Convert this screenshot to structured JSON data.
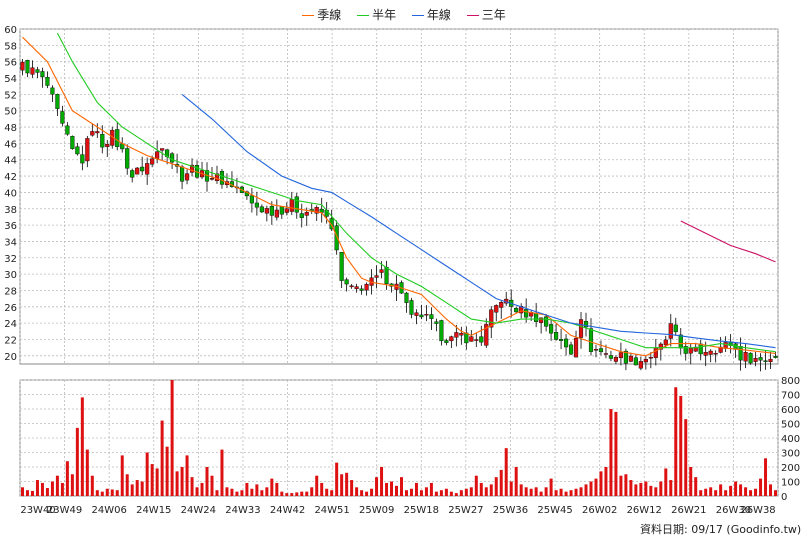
{
  "legend": [
    {
      "label": "季線",
      "color": "#ff6600"
    },
    {
      "label": "半年",
      "color": "#22cc22"
    },
    {
      "label": "年線",
      "color": "#2266dd"
    },
    {
      "label": "三年",
      "color": "#cc1166"
    }
  ],
  "credit": "資料日期: 09/17 (Goodinfo.tw)",
  "colors": {
    "up": "#dd1111",
    "down": "#00aa00",
    "volume": "#dd1111",
    "grid": "#bbbbbb"
  },
  "chart_data": [
    {
      "type": "candlestick",
      "title": "",
      "ylim": [
        19,
        60
      ],
      "yticks": [
        20,
        22,
        24,
        26,
        28,
        30,
        32,
        34,
        36,
        38,
        40,
        42,
        44,
        46,
        48,
        50,
        52,
        54,
        56,
        58,
        60
      ],
      "x_ticks": [
        "23W40",
        "23W49",
        "24W06",
        "24W15",
        "24W24",
        "24W33",
        "24W42",
        "24W51",
        "25W09",
        "25W18",
        "25W27",
        "25W36",
        "25W45",
        "26W02",
        "26W12",
        "26W21",
        "26W30",
        "26W38"
      ],
      "grid": true,
      "close_path": [
        [
          0,
          55.5
        ],
        [
          3,
          54.5
        ],
        [
          5,
          53
        ],
        [
          8,
          48
        ],
        [
          10,
          45
        ],
        [
          12,
          44
        ],
        [
          14,
          48
        ],
        [
          16,
          46
        ],
        [
          18,
          47
        ],
        [
          20,
          45
        ],
        [
          22,
          42
        ],
        [
          24,
          43
        ],
        [
          26,
          44
        ],
        [
          28,
          46
        ],
        [
          30,
          44
        ],
        [
          32,
          42
        ],
        [
          34,
          43
        ],
        [
          36,
          42
        ],
        [
          38,
          42
        ],
        [
          40,
          41.5
        ],
        [
          42,
          41
        ],
        [
          44,
          40
        ],
        [
          46,
          38.5
        ],
        [
          48,
          38
        ],
        [
          50,
          37.8
        ],
        [
          52,
          38
        ],
        [
          54,
          38.5
        ],
        [
          56,
          37.5
        ],
        [
          58,
          37.8
        ],
        [
          60,
          37.5
        ],
        [
          62,
          36
        ],
        [
          64,
          29
        ],
        [
          66,
          28
        ],
        [
          68,
          28.5
        ],
        [
          70,
          29
        ],
        [
          72,
          30
        ],
        [
          74,
          29
        ],
        [
          76,
          28
        ],
        [
          78,
          24.5
        ],
        [
          80,
          25
        ],
        [
          82,
          24
        ],
        [
          84,
          22.5
        ],
        [
          86,
          22
        ],
        [
          88,
          22.5
        ],
        [
          90,
          22
        ],
        [
          92,
          22
        ],
        [
          94,
          25
        ],
        [
          96,
          27
        ],
        [
          98,
          26
        ],
        [
          100,
          25.5
        ],
        [
          102,
          25
        ],
        [
          104,
          24.5
        ],
        [
          106,
          23
        ],
        [
          108,
          21.5
        ],
        [
          110,
          20.5
        ],
        [
          112,
          25
        ],
        [
          114,
          21
        ],
        [
          116,
          20.5
        ],
        [
          118,
          20
        ],
        [
          120,
          20
        ],
        [
          122,
          19.5
        ],
        [
          124,
          19.5
        ],
        [
          126,
          20
        ],
        [
          128,
          21
        ],
        [
          129,
          22
        ],
        [
          130,
          23.5
        ],
        [
          132,
          21
        ],
        [
          134,
          20.5
        ],
        [
          136,
          20.5
        ],
        [
          138,
          21
        ],
        [
          140,
          21
        ],
        [
          142,
          21.5
        ],
        [
          144,
          20
        ],
        [
          146,
          19.8
        ],
        [
          148,
          19.5
        ],
        [
          150,
          19.8
        ],
        [
          151,
          20
        ]
      ],
      "moving_averages": [
        {
          "name": "季線",
          "color": "#ff6600",
          "points": [
            [
              0,
              59
            ],
            [
              5,
              56
            ],
            [
              10,
              50
            ],
            [
              15,
              48
            ],
            [
              20,
              46
            ],
            [
              25,
              44.5
            ],
            [
              30,
              43.5
            ],
            [
              35,
              42.5
            ],
            [
              40,
              41.5
            ],
            [
              45,
              40
            ],
            [
              50,
              38.5
            ],
            [
              55,
              38
            ],
            [
              60,
              37.5
            ],
            [
              62,
              36
            ],
            [
              65,
              32
            ],
            [
              68,
              29.5
            ],
            [
              70,
              29
            ],
            [
              75,
              28.5
            ],
            [
              80,
              27.5
            ],
            [
              85,
              24.5
            ],
            [
              88,
              23
            ],
            [
              90,
              22.5
            ],
            [
              95,
              24
            ],
            [
              100,
              25.5
            ],
            [
              105,
              25
            ],
            [
              110,
              22.5
            ],
            [
              115,
              21.5
            ],
            [
              120,
              20.5
            ],
            [
              125,
              20
            ],
            [
              130,
              21.5
            ],
            [
              135,
              21.5
            ],
            [
              140,
              21
            ],
            [
              145,
              20.7
            ],
            [
              151,
              20.3
            ]
          ]
        },
        {
          "name": "半年",
          "color": "#22cc22",
          "points": [
            [
              7,
              59.5
            ],
            [
              10,
              56
            ],
            [
              15,
              51
            ],
            [
              20,
              48
            ],
            [
              25,
              46
            ],
            [
              30,
              44
            ],
            [
              35,
              43
            ],
            [
              40,
              42
            ],
            [
              45,
              41
            ],
            [
              50,
              40
            ],
            [
              55,
              39
            ],
            [
              60,
              38.5
            ],
            [
              65,
              35
            ],
            [
              70,
              32
            ],
            [
              75,
              30
            ],
            [
              80,
              28.5
            ],
            [
              85,
              26.5
            ],
            [
              90,
              24.5
            ],
            [
              95,
              24
            ],
            [
              100,
              24.5
            ],
            [
              105,
              24.5
            ],
            [
              110,
              24
            ],
            [
              115,
              23
            ],
            [
              120,
              22
            ],
            [
              125,
              21
            ],
            [
              130,
              21
            ],
            [
              135,
              21
            ],
            [
              140,
              21.5
            ],
            [
              145,
              21
            ],
            [
              151,
              20.5
            ]
          ]
        },
        {
          "name": "年線",
          "color": "#2266dd",
          "points": [
            [
              32,
              52
            ],
            [
              38,
              49
            ],
            [
              45,
              45
            ],
            [
              52,
              42
            ],
            [
              58,
              40.5
            ],
            [
              62,
              40
            ],
            [
              66,
              38.5
            ],
            [
              70,
              37
            ],
            [
              75,
              35
            ],
            [
              80,
              33
            ],
            [
              85,
              31
            ],
            [
              90,
              29
            ],
            [
              95,
              27
            ],
            [
              100,
              26
            ],
            [
              105,
              25
            ],
            [
              110,
              24
            ],
            [
              115,
              23.5
            ],
            [
              120,
              23
            ],
            [
              125,
              22.8
            ],
            [
              130,
              22.6
            ],
            [
              135,
              22.2
            ],
            [
              140,
              21.8
            ],
            [
              145,
              21.5
            ],
            [
              151,
              21
            ]
          ]
        },
        {
          "name": "三年",
          "color": "#cc1166",
          "points": [
            [
              132,
              36.5
            ],
            [
              137,
              35
            ],
            [
              142,
              33.5
            ],
            [
              147,
              32.5
            ],
            [
              151,
              31.5
            ]
          ]
        }
      ]
    },
    {
      "type": "bar",
      "title": "",
      "ylim": [
        0,
        800
      ],
      "yticks": [
        0,
        100,
        200,
        300,
        400,
        500,
        600,
        700,
        800
      ],
      "n_bars": 152,
      "volume_levels": [
        [
          0,
          60
        ],
        [
          1,
          40
        ],
        [
          2,
          35
        ],
        [
          3,
          110
        ],
        [
          4,
          90
        ],
        [
          5,
          55
        ],
        [
          6,
          100
        ],
        [
          7,
          140
        ],
        [
          8,
          90
        ],
        [
          9,
          240
        ],
        [
          10,
          150
        ],
        [
          11,
          470
        ],
        [
          12,
          680
        ],
        [
          13,
          320
        ],
        [
          14,
          140
        ],
        [
          15,
          40
        ],
        [
          16,
          30
        ],
        [
          17,
          50
        ],
        [
          18,
          45
        ],
        [
          19,
          40
        ],
        [
          20,
          280
        ],
        [
          21,
          150
        ],
        [
          22,
          80
        ],
        [
          23,
          110
        ],
        [
          24,
          100
        ],
        [
          25,
          300
        ],
        [
          26,
          220
        ],
        [
          27,
          190
        ],
        [
          28,
          520
        ],
        [
          29,
          340
        ],
        [
          30,
          810
        ],
        [
          31,
          170
        ],
        [
          32,
          200
        ],
        [
          33,
          280
        ],
        [
          34,
          130
        ],
        [
          35,
          60
        ],
        [
          36,
          90
        ],
        [
          37,
          200
        ],
        [
          38,
          140
        ],
        [
          39,
          40
        ],
        [
          40,
          320
        ],
        [
          41,
          60
        ],
        [
          42,
          50
        ],
        [
          43,
          30
        ],
        [
          44,
          40
        ],
        [
          45,
          90
        ],
        [
          46,
          50
        ],
        [
          47,
          80
        ],
        [
          48,
          40
        ],
        [
          49,
          60
        ],
        [
          50,
          120
        ],
        [
          51,
          90
        ],
        [
          52,
          30
        ],
        [
          53,
          20
        ],
        [
          54,
          20
        ],
        [
          55,
          25
        ],
        [
          56,
          30
        ],
        [
          57,
          30
        ],
        [
          58,
          60
        ],
        [
          59,
          140
        ],
        [
          60,
          90
        ],
        [
          61,
          50
        ],
        [
          62,
          40
        ],
        [
          63,
          230
        ],
        [
          64,
          150
        ],
        [
          65,
          160
        ],
        [
          66,
          110
        ],
        [
          67,
          60
        ],
        [
          68,
          40
        ],
        [
          69,
          30
        ],
        [
          70,
          50
        ],
        [
          71,
          130
        ],
        [
          72,
          200
        ],
        [
          73,
          90
        ],
        [
          74,
          100
        ],
        [
          75,
          70
        ],
        [
          76,
          130
        ],
        [
          77,
          40
        ],
        [
          78,
          50
        ],
        [
          79,
          90
        ],
        [
          80,
          40
        ],
        [
          81,
          60
        ],
        [
          82,
          90
        ],
        [
          83,
          30
        ],
        [
          84,
          40
        ],
        [
          85,
          50
        ],
        [
          86,
          30
        ],
        [
          87,
          20
        ],
        [
          88,
          40
        ],
        [
          89,
          50
        ],
        [
          90,
          60
        ],
        [
          91,
          140
        ],
        [
          92,
          90
        ],
        [
          93,
          60
        ],
        [
          94,
          80
        ],
        [
          95,
          130
        ],
        [
          96,
          180
        ],
        [
          97,
          330
        ],
        [
          98,
          100
        ],
        [
          99,
          200
        ],
        [
          100,
          80
        ],
        [
          101,
          60
        ],
        [
          102,
          50
        ],
        [
          103,
          60
        ],
        [
          104,
          30
        ],
        [
          105,
          60
        ],
        [
          106,
          120
        ],
        [
          107,
          40
        ],
        [
          108,
          50
        ],
        [
          109,
          30
        ],
        [
          110,
          40
        ],
        [
          111,
          50
        ],
        [
          112,
          60
        ],
        [
          113,
          80
        ],
        [
          114,
          100
        ],
        [
          115,
          120
        ],
        [
          116,
          170
        ],
        [
          117,
          200
        ],
        [
          118,
          600
        ],
        [
          119,
          580
        ],
        [
          120,
          140
        ],
        [
          121,
          150
        ],
        [
          122,
          110
        ],
        [
          123,
          80
        ],
        [
          124,
          90
        ],
        [
          125,
          100
        ],
        [
          126,
          70
        ],
        [
          127,
          60
        ],
        [
          128,
          100
        ],
        [
          129,
          190
        ],
        [
          130,
          110
        ],
        [
          131,
          750
        ],
        [
          132,
          690
        ],
        [
          133,
          530
        ],
        [
          134,
          200
        ],
        [
          135,
          130
        ],
        [
          136,
          40
        ],
        [
          137,
          50
        ],
        [
          138,
          60
        ],
        [
          139,
          40
        ],
        [
          140,
          80
        ],
        [
          141,
          40
        ],
        [
          142,
          70
        ],
        [
          143,
          100
        ],
        [
          144,
          80
        ],
        [
          145,
          60
        ],
        [
          146,
          40
        ],
        [
          147,
          50
        ],
        [
          148,
          120
        ],
        [
          149,
          260
        ],
        [
          150,
          80
        ],
        [
          151,
          40
        ]
      ]
    }
  ]
}
